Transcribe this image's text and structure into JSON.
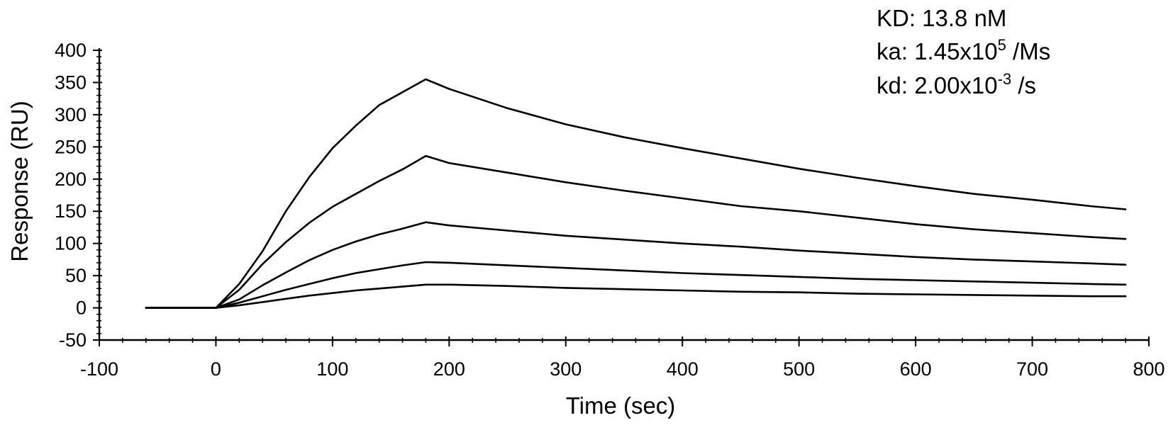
{
  "chart_data": {
    "type": "line",
    "title": "",
    "xlabel": "Time (sec)",
    "ylabel": "Response (RU)",
    "xlim": [
      -100,
      800
    ],
    "ylim": [
      -50,
      400
    ],
    "xticks": [
      -100,
      0,
      100,
      200,
      300,
      400,
      500,
      600,
      700,
      800
    ],
    "yticks": [
      -50,
      0,
      50,
      100,
      150,
      200,
      250,
      300,
      350,
      400
    ],
    "grid": false,
    "legend": "none",
    "line_color": "#000000",
    "association_end": 180,
    "series": [
      {
        "x": [
          -60,
          0,
          20,
          40,
          60,
          80,
          100,
          120,
          140,
          160,
          180,
          200,
          250,
          300,
          350,
          400,
          450,
          500,
          550,
          600,
          650,
          700,
          750,
          780
        ],
        "y": [
          0,
          0,
          37,
          88,
          150,
          203,
          248,
          283,
          315,
          335,
          355,
          340,
          310,
          285,
          265,
          248,
          232,
          216,
          202,
          189,
          177,
          168,
          158,
          153
        ]
      },
      {
        "x": [
          -60,
          0,
          20,
          40,
          60,
          80,
          100,
          120,
          140,
          160,
          180,
          200,
          250,
          300,
          350,
          400,
          450,
          500,
          550,
          600,
          650,
          700,
          750,
          780
        ],
        "y": [
          0,
          0,
          28,
          68,
          102,
          132,
          157,
          177,
          197,
          215,
          236,
          225,
          210,
          195,
          182,
          170,
          158,
          150,
          140,
          130,
          122,
          116,
          110,
          107
        ]
      },
      {
        "x": [
          -60,
          0,
          20,
          40,
          60,
          80,
          100,
          120,
          140,
          160,
          180,
          200,
          250,
          300,
          350,
          400,
          450,
          500,
          550,
          600,
          650,
          700,
          750,
          780
        ],
        "y": [
          0,
          0,
          13,
          35,
          55,
          74,
          90,
          103,
          114,
          123,
          133,
          128,
          120,
          112,
          106,
          100,
          95,
          89,
          84,
          79,
          75,
          72,
          69,
          67
        ]
      },
      {
        "x": [
          -60,
          0,
          20,
          40,
          60,
          80,
          100,
          120,
          140,
          160,
          180,
          200,
          250,
          300,
          350,
          400,
          450,
          500,
          550,
          600,
          650,
          700,
          750,
          780
        ],
        "y": [
          0,
          0,
          8,
          18,
          28,
          37,
          46,
          54,
          60,
          66,
          71,
          70,
          66,
          62,
          58,
          54,
          51,
          48,
          45,
          43,
          41,
          39,
          37,
          36
        ]
      },
      {
        "x": [
          -60,
          0,
          20,
          40,
          60,
          80,
          100,
          120,
          140,
          160,
          180,
          200,
          250,
          300,
          350,
          400,
          450,
          500,
          550,
          600,
          650,
          700,
          750,
          780
        ],
        "y": [
          0,
          0,
          4,
          9,
          14,
          19,
          23,
          27,
          30,
          33,
          36,
          36,
          34,
          31,
          29,
          27,
          25,
          24,
          22,
          21,
          20,
          19,
          18,
          18
        ]
      }
    ],
    "annotations": {
      "kd_label": "KD: 13.8 nM",
      "ka_label": "ka: 1.45x10",
      "ka_exp": "5",
      "ka_unit": " /Ms",
      "koff_label": "kd: 2.00x10",
      "koff_exp": "-3",
      "koff_unit": " /s"
    }
  }
}
